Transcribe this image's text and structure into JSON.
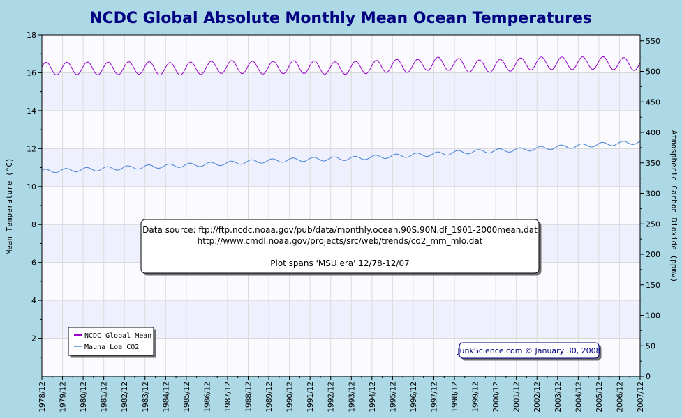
{
  "chart_data": {
    "type": "line",
    "title": "NCDC Global Absolute Monthly Mean Ocean Temperatures",
    "ylabel": "Mean Temperature (°C)",
    "y2label": "Atmospheric Carbon Dioxide (ppmv)",
    "ylim": [
      0,
      18
    ],
    "y2lim": [
      0,
      560
    ],
    "yticks": [
      2,
      4,
      6,
      8,
      10,
      12,
      14,
      16,
      18
    ],
    "y2ticks": [
      0,
      50,
      100,
      150,
      200,
      250,
      300,
      350,
      400,
      450,
      500,
      550
    ],
    "x_categories": [
      "1978/12",
      "1979/12",
      "1980/12",
      "1981/12",
      "1982/12",
      "1983/12",
      "1984/12",
      "1985/12",
      "1986/12",
      "1987/12",
      "1988/12",
      "1989/12",
      "1990/12",
      "1991/12",
      "1992/12",
      "1993/12",
      "1994/12",
      "1995/12",
      "1996/12",
      "1997/12",
      "1998/12",
      "1999/12",
      "2000/12",
      "2001/12",
      "2002/12",
      "2003/12",
      "2004/12",
      "2005/12",
      "2006/12",
      "2007/12"
    ],
    "grid": true,
    "legend_position": "bottom-left",
    "series": [
      {
        "name": "NCDC Global Mean",
        "axis": "left",
        "color": "#9900cc",
        "seasonal_amplitude": 0.34,
        "annual_values": [
          16.22,
          16.22,
          16.24,
          16.22,
          16.24,
          16.26,
          16.2,
          16.22,
          16.26,
          16.32,
          16.28,
          16.26,
          16.3,
          16.3,
          16.24,
          16.26,
          16.3,
          16.38,
          16.34,
          16.5,
          16.44,
          16.34,
          16.36,
          16.44,
          16.5,
          16.5,
          16.5,
          16.52,
          16.48,
          16.44
        ]
      },
      {
        "name": "Mauna Loa CO2",
        "axis": "right",
        "color": "#4682d8",
        "seasonal_amplitude": 3.2,
        "annual_values": [
          336.2,
          337.6,
          339.0,
          340.4,
          341.8,
          343.4,
          344.8,
          346.1,
          347.6,
          349.3,
          351.6,
          353.2,
          354.6,
          355.8,
          356.5,
          357.3,
          359.1,
          361.0,
          362.7,
          364.2,
          366.8,
          368.4,
          369.7,
          371.3,
          373.3,
          375.8,
          377.6,
          380.0,
          382.0,
          384.0
        ]
      }
    ],
    "annotation_lines": [
      "Data source: ftp://ftp.ncdc.noaa.gov/pub/data/monthly.ocean.90S.90N.df_1901-2000mean.dat",
      "http://www.cmdl.noaa.gov/projects/src/web/trends/co2_mm_mlo.dat",
      "",
      "Plot spans 'MSU era' 12/78-12/07"
    ],
    "credit": "JunkScience.com © January 30, 2008"
  }
}
